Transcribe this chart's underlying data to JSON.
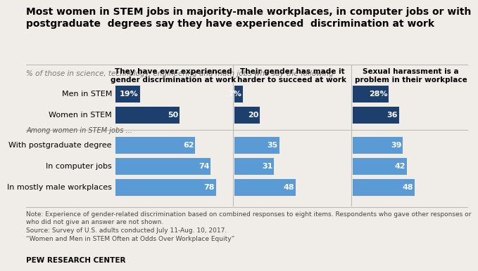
{
  "title": "Most women in STEM jobs in majority-male workplaces, in computer jobs or with\npostgraduate  degrees say they have experienced  discrimination at work",
  "subtitle": "% of those in science, technology, engineering and math jobs who say the following",
  "col_headers": [
    "They have ever experienced\ngender discrimination at work",
    "Their gender has made it\nharder to succeed at work",
    "Sexual harassment is a\nproblem in their workplace"
  ],
  "section_label": "Among women in STEM jobs ...",
  "row_labels": [
    "Men in STEM",
    "Women in STEM",
    "With postgraduate degree",
    "In computer jobs",
    "In mostly male workplaces"
  ],
  "values": [
    [
      19,
      7,
      28
    ],
    [
      50,
      20,
      36
    ],
    [
      62,
      35,
      39
    ],
    [
      74,
      31,
      42
    ],
    [
      78,
      48,
      48
    ]
  ],
  "colors": [
    "#1c3f6e",
    "#1c3f6e",
    "#5b9bd5",
    "#5b9bd5",
    "#5b9bd5"
  ],
  "note_text": "Note: Experience of gender-related discrimination based on combined responses to eight items. Respondents who gave other responses or\nwho did not give an answer are not shown.\nSource: Survey of U.S. adults conducted July 11-Aug. 10, 2017.\n“Women and Men in STEM Often at Odds Over Workplace Equity”",
  "pew": "PEW RESEARCH CENTER",
  "fig_bg": "#f0ede8",
  "bar_max": 90,
  "title_fontsize": 10,
  "subtitle_fontsize": 7.5,
  "label_fontsize": 8,
  "header_fontsize": 7.5,
  "bar_fontsize": 8,
  "note_fontsize": 6.5,
  "pew_fontsize": 7.5
}
